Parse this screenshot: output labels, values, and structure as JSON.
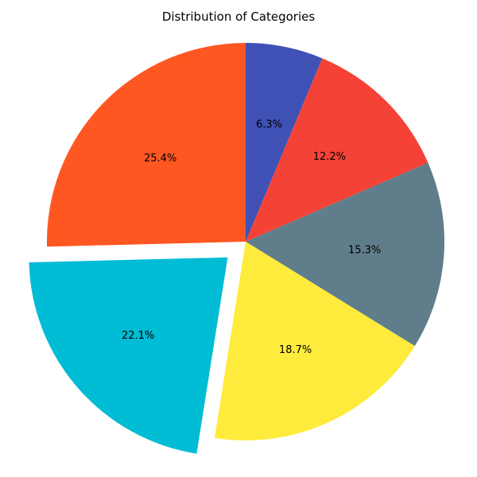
{
  "chart_data": {
    "type": "pie",
    "title": "Distribution of Categories",
    "start_angle_deg": 90,
    "direction": "clockwise",
    "slices": [
      {
        "value": 6.3,
        "label": "6.3%",
        "color": "#3F51B5",
        "exploded": false
      },
      {
        "value": 12.2,
        "label": "12.2%",
        "color": "#F44336",
        "exploded": false
      },
      {
        "value": 15.3,
        "label": "15.3%",
        "color": "#607D8B",
        "exploded": false
      },
      {
        "value": 18.7,
        "label": "18.7%",
        "color": "#FFEB3B",
        "exploded": false
      },
      {
        "value": 22.1,
        "label": "22.1%",
        "color": "#00BCD4",
        "exploded": true
      },
      {
        "value": 25.4,
        "label": "25.4%",
        "color": "#FF5722",
        "exploded": false
      }
    ]
  }
}
